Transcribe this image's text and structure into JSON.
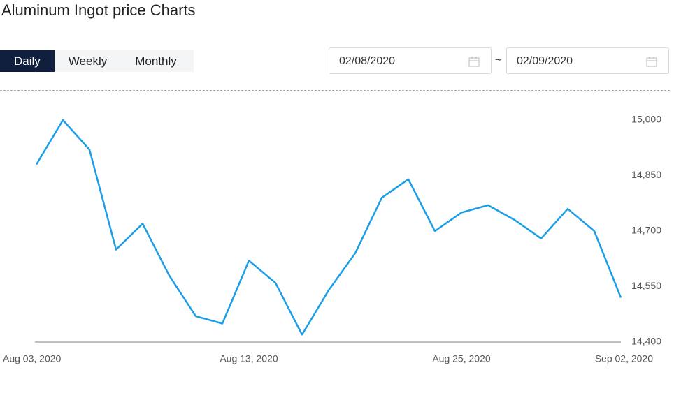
{
  "header": {
    "title": "Aluminum Ingot price Charts"
  },
  "tabs": [
    "Daily",
    "Weekly",
    "Monthly"
  ],
  "date_range": {
    "start": "02/08/2020",
    "separator": "~",
    "end": "02/09/2020"
  },
  "chart_data": {
    "type": "line",
    "categories": [
      "Aug 03, 2020",
      null,
      null,
      null,
      null,
      null,
      null,
      null,
      "Aug 13, 2020",
      null,
      null,
      null,
      null,
      null,
      null,
      null,
      "Aug 25, 2020",
      null,
      null,
      null,
      null,
      null,
      "Sep 02, 2020"
    ],
    "series": [
      {
        "name": "Aluminum Ingot",
        "color": "#1a9ee8",
        "values": [
          14880,
          15000,
          14920,
          14650,
          14720,
          14580,
          14470,
          14450,
          14620,
          14560,
          14420,
          14540,
          14640,
          14790,
          14840,
          14700,
          14750,
          14770,
          14730,
          14680,
          14760,
          14700,
          14520
        ]
      }
    ],
    "ylim": [
      14400,
      15000
    ],
    "yticks": [
      {
        "value": 14400,
        "label": "14,400"
      },
      {
        "value": 14550,
        "label": "14,550"
      },
      {
        "value": 14700,
        "label": "14,700"
      },
      {
        "value": 14850,
        "label": "14,850"
      },
      {
        "value": 15000,
        "label": "15,000"
      }
    ]
  }
}
